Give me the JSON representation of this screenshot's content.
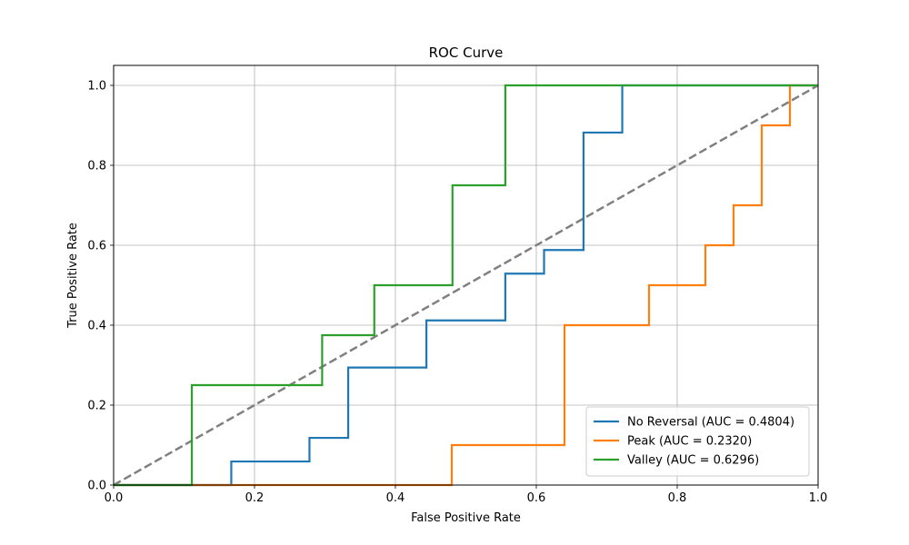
{
  "chart_data": {
    "type": "line",
    "title": "ROC Curve",
    "xlabel": "False Positive Rate",
    "ylabel": "True Positive Rate",
    "xlim": [
      0.0,
      1.0
    ],
    "ylim": [
      0.0,
      1.05
    ],
    "xticks": [
      "0.0",
      "0.2",
      "0.4",
      "0.6",
      "0.8",
      "1.0"
    ],
    "yticks": [
      "0.0",
      "0.2",
      "0.4",
      "0.6",
      "0.8",
      "1.0"
    ],
    "grid": true,
    "legend_position": "bottom-right",
    "diagonal": {
      "x": [
        0,
        1
      ],
      "y": [
        0,
        1
      ],
      "color": "#808080",
      "style": "dashed"
    },
    "series": [
      {
        "name": "No Reversal (AUC = 0.4804)",
        "color": "#1f77b4",
        "x": [
          0,
          0.167,
          0.167,
          0.278,
          0.278,
          0.333,
          0.333,
          0.444,
          0.444,
          0.556,
          0.556,
          0.611,
          0.611,
          0.667,
          0.667,
          0.722,
          0.722,
          1.0
        ],
        "y": [
          0,
          0,
          0.059,
          0.059,
          0.118,
          0.118,
          0.294,
          0.294,
          0.412,
          0.412,
          0.529,
          0.529,
          0.588,
          0.588,
          0.882,
          0.882,
          1.0,
          1.0
        ]
      },
      {
        "name": "Peak (AUC = 0.2320)",
        "color": "#ff7f0e",
        "x": [
          0,
          0.48,
          0.48,
          0.64,
          0.64,
          0.76,
          0.76,
          0.84,
          0.84,
          0.88,
          0.88,
          0.92,
          0.92,
          0.96,
          0.96,
          1.0
        ],
        "y": [
          0,
          0,
          0.1,
          0.1,
          0.4,
          0.4,
          0.5,
          0.5,
          0.6,
          0.6,
          0.7,
          0.7,
          0.9,
          0.9,
          1.0,
          1.0
        ]
      },
      {
        "name": "Valley (AUC = 0.6296)",
        "color": "#2ca02c",
        "x": [
          0,
          0.111,
          0.111,
          0.296,
          0.296,
          0.37,
          0.37,
          0.481,
          0.481,
          0.556,
          0.556,
          1.0
        ],
        "y": [
          0,
          0,
          0.25,
          0.25,
          0.375,
          0.375,
          0.5,
          0.5,
          0.75,
          0.75,
          1.0,
          1.0
        ]
      }
    ]
  }
}
